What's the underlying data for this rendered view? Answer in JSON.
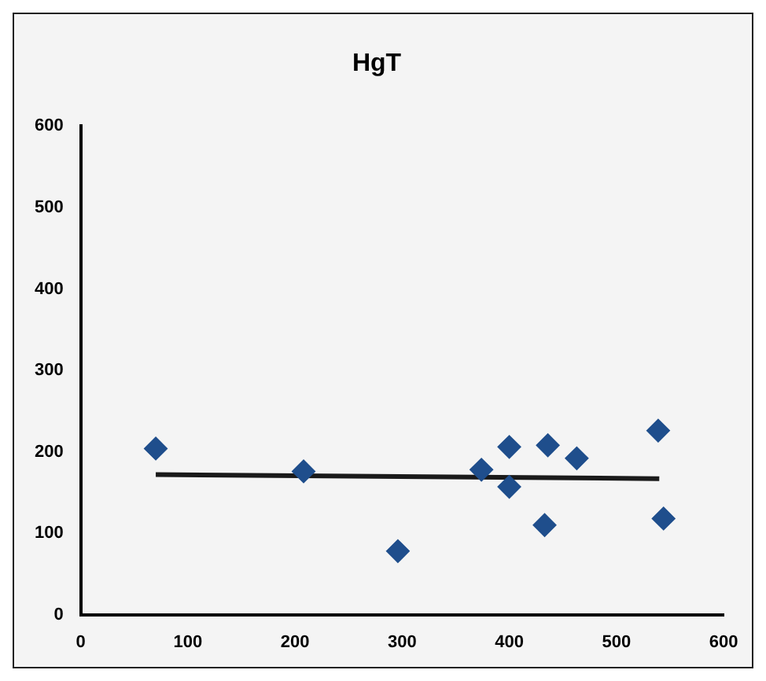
{
  "chart_data": {
    "type": "scatter",
    "title": "HgT",
    "xlim": [
      0,
      600
    ],
    "xticks": [
      0,
      100,
      200,
      300,
      400,
      500,
      600
    ],
    "ylim": [
      0,
      600
    ],
    "yticks": [
      0,
      100,
      200,
      300,
      400,
      500,
      600
    ],
    "grid": false,
    "legend": false,
    "marker": "diamond",
    "series": [
      {
        "color": "#1f4e8c",
        "x": [
          70,
          208,
          296,
          374,
          400,
          400,
          436,
          433,
          463,
          539,
          544
        ],
        "values": [
          204,
          176,
          78,
          178,
          206,
          157,
          208,
          110,
          192,
          226,
          118
        ]
      },
      {
        "type": "line",
        "color": "#1a1a1a",
        "marker": "none",
        "x": [
          70,
          540
        ],
        "values": [
          172,
          167
        ]
      }
    ]
  }
}
